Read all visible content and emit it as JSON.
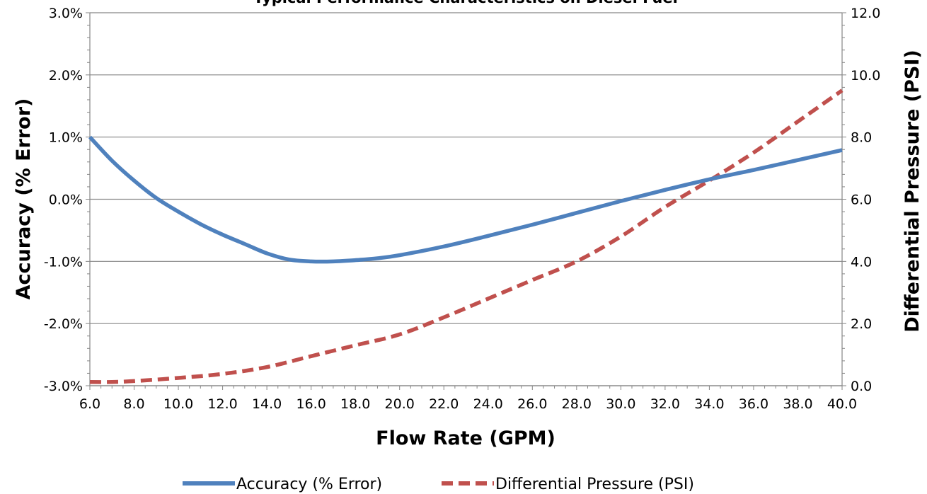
{
  "chart_data": {
    "type": "line",
    "title": "Typical Performance Characteristics on Diesel Fuel",
    "xlabel": "Flow Rate (GPM)",
    "ylabel": "Accuracy (% Error)",
    "y2label": "Differential Pressure (PSI)",
    "xlim": [
      6,
      40
    ],
    "ylim": [
      -3,
      3
    ],
    "y2lim": [
      0,
      12
    ],
    "x_ticks": [
      "6.0",
      "8.0",
      "10.0",
      "12.0",
      "14.0",
      "16.0",
      "18.0",
      "20.0",
      "22.0",
      "24.0",
      "26.0",
      "28.0",
      "30.0",
      "32.0",
      "34.0",
      "36.0",
      "38.0",
      "40.0"
    ],
    "y_ticks": [
      "-3.0%",
      "-2.0%",
      "-1.0%",
      "0.0%",
      "1.0%",
      "2.0%",
      "3.0%"
    ],
    "y2_ticks": [
      "0.0",
      "2.0",
      "4.0",
      "6.0",
      "8.0",
      "10.0",
      "12.0"
    ],
    "grid": true,
    "legend_position": "bottom",
    "series": [
      {
        "name": "Accuracy (% Error)",
        "axis": "left",
        "color": "#4F81BD",
        "style": "solid",
        "x": [
          6,
          7,
          8,
          9,
          10,
          11,
          12,
          13,
          14,
          15,
          16,
          17,
          18,
          19,
          20,
          22,
          24,
          26,
          28,
          30,
          32,
          34,
          36,
          38,
          40
        ],
        "y": [
          1.0,
          0.62,
          0.3,
          0.02,
          -0.2,
          -0.4,
          -0.57,
          -0.72,
          -0.87,
          -0.97,
          -1.0,
          -1.0,
          -0.98,
          -0.95,
          -0.9,
          -0.76,
          -0.59,
          -0.41,
          -0.22,
          -0.03,
          0.15,
          0.32,
          0.47,
          0.63,
          0.79
        ]
      },
      {
        "name": "Differential Pressure (PSI)",
        "axis": "right",
        "color": "#C0504D",
        "style": "dashed",
        "x": [
          6,
          7,
          8,
          10,
          12,
          14,
          16,
          18,
          20,
          22,
          24,
          26,
          28,
          30,
          32,
          34,
          36,
          38,
          40
        ],
        "y": [
          0.12,
          0.12,
          0.15,
          0.25,
          0.38,
          0.6,
          0.95,
          1.3,
          1.65,
          2.2,
          2.8,
          3.4,
          4.0,
          4.8,
          5.75,
          6.6,
          7.5,
          8.5,
          9.5
        ]
      }
    ]
  }
}
